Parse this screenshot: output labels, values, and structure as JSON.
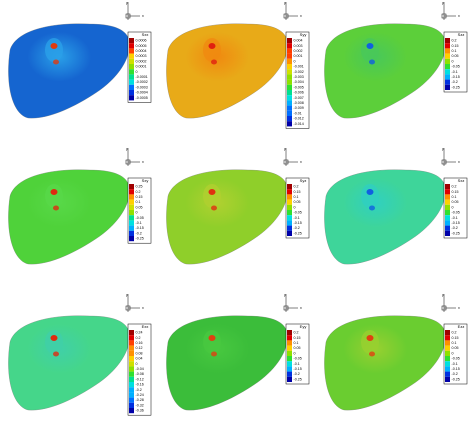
{
  "axis_labels": {
    "x": "x",
    "y": "y"
  },
  "colormap": [
    "#0000a8",
    "#0030e0",
    "#0070ff",
    "#00b0ff",
    "#00e0e0",
    "#00e090",
    "#30e030",
    "#90e000",
    "#d0e000",
    "#ffd000",
    "#ff9000",
    "#ff4000",
    "#e00000",
    "#a00000"
  ],
  "panels": [
    {
      "legend_title": "Sxx",
      "base_color": "#1565d0",
      "mid_color": "#2aa0e8",
      "spot_color": "#e03a10",
      "levels": [
        "0.0006",
        "0.0005",
        "0.0004",
        "0.0003",
        "0.0002",
        "0.0001",
        "0",
        "-0.0001",
        "-0.0002",
        "-0.0003",
        "-0.0004",
        "-0.0005"
      ]
    },
    {
      "legend_title": "Syy",
      "base_color": "#e8aa18",
      "mid_color": "#f08a10",
      "spot_color": "#e02010",
      "levels": [
        "0.004",
        "0.003",
        "0.002",
        "0.001",
        "0",
        "-0.001",
        "-0.002",
        "-0.003",
        "-0.004",
        "-0.005",
        "-0.006",
        "-0.007",
        "-0.008",
        "-0.009",
        "-0.01",
        "-0.012",
        "-0.014"
      ]
    },
    {
      "legend_title": "Szz",
      "base_color": "#5ccf3a",
      "mid_color": "#48c85a",
      "spot_color": "#1060e0",
      "levels": [
        "0.2",
        "0.15",
        "0.1",
        "0.05",
        "0",
        "-0.05",
        "-0.1",
        "-0.15",
        "-0.2",
        "-0.25"
      ]
    },
    {
      "legend_title": "Sxy",
      "base_color": "#4fd23a",
      "mid_color": "#58d848",
      "spot_color": "#e02a10",
      "levels": [
        "0.25",
        "0.2",
        "0.15",
        "0.1",
        "0.05",
        "0",
        "-0.05",
        "-0.1",
        "-0.15",
        "-0.2",
        "-0.25"
      ]
    },
    {
      "legend_title": "Syz",
      "base_color": "#8fcf2a",
      "mid_color": "#b0d030",
      "spot_color": "#e03010",
      "levels": [
        "0.2",
        "0.15",
        "0.1",
        "0.05",
        "0",
        "-0.05",
        "-0.1",
        "-0.15",
        "-0.2",
        "-0.25"
      ]
    },
    {
      "legend_title": "Sxz",
      "base_color": "#3ed59a",
      "mid_color": "#30d0c0",
      "spot_color": "#1060e0",
      "levels": [
        "0.2",
        "0.15",
        "0.1",
        "0.05",
        "0",
        "-0.05",
        "-0.1",
        "-0.15",
        "-0.2",
        "-0.25"
      ]
    },
    {
      "legend_title": "Exx",
      "base_color": "#45d68a",
      "mid_color": "#40d0a8",
      "spot_color": "#e02a10",
      "levels": [
        "0.24",
        "0.2",
        "0.16",
        "0.12",
        "0.08",
        "0.04",
        "0",
        "-0.04",
        "-0.08",
        "-0.12",
        "-0.16",
        "-0.2",
        "-0.24",
        "-0.28",
        "-0.32",
        "-0.36"
      ]
    },
    {
      "legend_title": "Eyy",
      "base_color": "#3bbd3a",
      "mid_color": "#48c840",
      "spot_color": "#e04010",
      "levels": [
        "0.2",
        "0.15",
        "0.1",
        "0.05",
        "0",
        "-0.05",
        "-0.1",
        "-0.15",
        "-0.2",
        "-0.25"
      ]
    },
    {
      "legend_title": "Ezz",
      "base_color": "#6acd30",
      "mid_color": "#98d030",
      "spot_color": "#e04010",
      "levels": [
        "0.2",
        "0.15",
        "0.1",
        "0.05",
        "0",
        "-0.05",
        "-0.1",
        "-0.15",
        "-0.2",
        "-0.25"
      ]
    }
  ]
}
